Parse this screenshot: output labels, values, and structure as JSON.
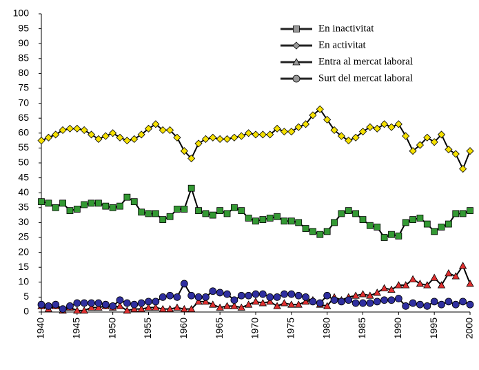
{
  "chart_data": {
    "type": "line",
    "x": [
      1940,
      1941,
      1942,
      1943,
      1944,
      1945,
      1946,
      1947,
      1948,
      1949,
      1950,
      1951,
      1952,
      1953,
      1954,
      1955,
      1956,
      1957,
      1958,
      1959,
      1960,
      1961,
      1962,
      1963,
      1964,
      1965,
      1966,
      1967,
      1968,
      1969,
      1970,
      1971,
      1972,
      1973,
      1974,
      1975,
      1976,
      1977,
      1978,
      1979,
      1980,
      1981,
      1982,
      1983,
      1984,
      1985,
      1986,
      1987,
      1988,
      1989,
      1990,
      1991,
      1992,
      1993,
      1994,
      1995,
      1996,
      1997,
      1998,
      1999,
      2000
    ],
    "series": [
      {
        "name": "En inactivitat",
        "color": "#339933",
        "line_color": "#000000",
        "marker": "square",
        "values": [
          37,
          36.5,
          35,
          36.5,
          34,
          34.5,
          36,
          36.5,
          36.5,
          35.5,
          35,
          35.5,
          38.5,
          37,
          33.5,
          33,
          33,
          31,
          32,
          34.5,
          34.5,
          41.5,
          34,
          33,
          32.5,
          34,
          33,
          35,
          34,
          31.5,
          30.5,
          31,
          31.5,
          32,
          30.5,
          30.5,
          30,
          28,
          27,
          26,
          27,
          30,
          33,
          34,
          33,
          31,
          29,
          28.5,
          25,
          26,
          25.5,
          30,
          31,
          31.5,
          29.5,
          27,
          28.5,
          29.5,
          33,
          33,
          34
        ]
      },
      {
        "name": "En activitat",
        "color": "#f5e000",
        "line_color": "#000000",
        "marker": "diamond",
        "values": [
          57.5,
          58.5,
          59.5,
          61,
          61.5,
          61.5,
          61,
          59.5,
          58,
          59,
          60,
          58.5,
          57.5,
          58,
          59.5,
          61.5,
          63,
          61,
          61,
          58.5,
          54,
          51.5,
          56.5,
          58,
          58.5,
          58,
          58,
          58.5,
          59,
          60,
          59.5,
          59.5,
          59.5,
          61.5,
          60.5,
          60.5,
          62,
          63,
          66,
          68,
          64.5,
          61,
          59,
          57.5,
          58.5,
          60.5,
          62,
          61.5,
          63,
          62,
          63,
          59,
          54,
          56,
          58.5,
          57,
          59.5,
          54.5,
          53,
          48,
          54
        ]
      },
      {
        "name": "Entra al mercat laboral",
        "color": "#e03030",
        "line_color": "#000000",
        "marker": "triangle",
        "values": [
          2,
          1,
          2,
          0.5,
          1.5,
          0.5,
          0.5,
          1.5,
          1.5,
          2,
          1.5,
          2,
          0.5,
          1,
          1,
          1.5,
          1.5,
          1,
          1,
          1.5,
          1,
          1,
          3.5,
          3.5,
          2.5,
          1.5,
          2,
          2,
          1.5,
          2.5,
          3.5,
          3,
          3.5,
          2,
          3,
          2.5,
          2.5,
          3.5,
          4,
          2.5,
          2,
          5,
          4,
          5,
          5.5,
          6,
          5.5,
          6.5,
          8,
          7.5,
          9,
          9,
          11,
          9.5,
          9,
          11.5,
          9,
          13,
          12,
          15.5,
          9.5
        ]
      },
      {
        "name": "Surt del mercat laboral",
        "color": "#2f2f9f",
        "line_color": "#000000",
        "marker": "circle",
        "values": [
          2.5,
          2,
          2.5,
          1,
          2,
          3,
          3,
          3,
          3,
          2.5,
          2,
          4,
          3,
          2.5,
          3,
          3.5,
          3.5,
          5,
          5.5,
          5,
          9.5,
          5.5,
          5,
          5,
          7,
          6.5,
          6,
          4,
          5.5,
          5.5,
          6,
          6,
          5,
          5,
          6,
          6,
          5.5,
          5,
          3.5,
          3,
          5.5,
          4,
          3.5,
          4,
          3,
          3,
          3,
          3.5,
          4,
          4,
          4.5,
          2,
          3,
          2.5,
          2,
          3.5,
          2.5,
          3.5,
          2.5,
          3.5,
          2.5
        ]
      }
    ],
    "xlim": [
      1940,
      2000
    ],
    "xticks": [
      1940,
      1945,
      1950,
      1955,
      1960,
      1965,
      1970,
      1975,
      1980,
      1985,
      1990,
      1995,
      2000
    ],
    "ylim": [
      0,
      100
    ],
    "yticks": [
      0,
      5,
      10,
      15,
      20,
      25,
      30,
      35,
      40,
      45,
      50,
      55,
      60,
      65,
      70,
      75,
      80,
      85,
      90,
      95,
      100
    ],
    "grid": false,
    "legend": "upper right"
  }
}
